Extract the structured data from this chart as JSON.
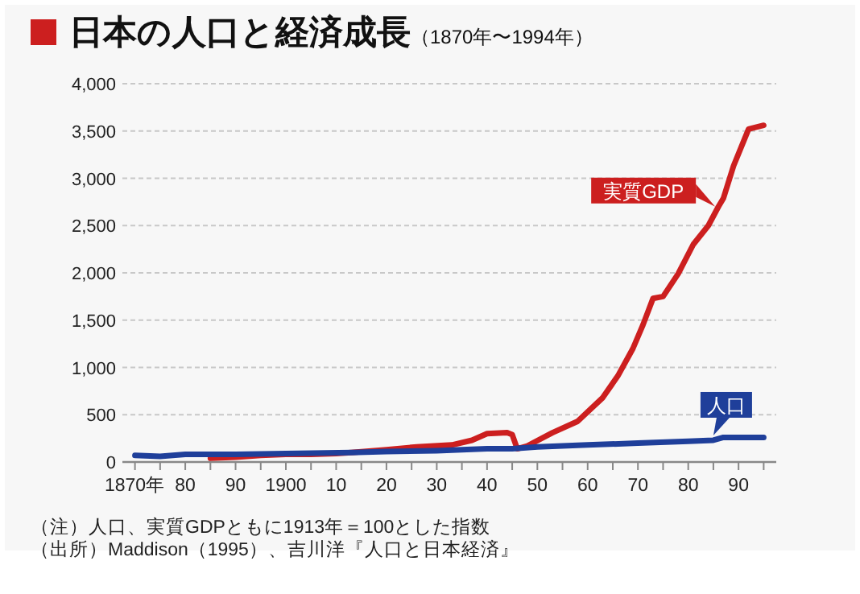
{
  "chart_data": {
    "type": "line",
    "title": "日本の人口と経済成長",
    "subtitle": "（1870年〜1994年）",
    "xlim": [
      1867.5,
      1997.5
    ],
    "xticks": [
      {
        "value": 1870,
        "label": "1870年"
      },
      {
        "value": 1875,
        "label": null
      },
      {
        "value": 1880,
        "label": "80"
      },
      {
        "value": 1885,
        "label": null
      },
      {
        "value": 1890,
        "label": "90"
      },
      {
        "value": 1895,
        "label": null
      },
      {
        "value": 1900,
        "label": "1900"
      },
      {
        "value": 1905,
        "label": null
      },
      {
        "value": 1910,
        "label": "10"
      },
      {
        "value": 1915,
        "label": null
      },
      {
        "value": 1920,
        "label": "20"
      },
      {
        "value": 1925,
        "label": null
      },
      {
        "value": 1930,
        "label": "30"
      },
      {
        "value": 1935,
        "label": null
      },
      {
        "value": 1940,
        "label": "40"
      },
      {
        "value": 1945,
        "label": null
      },
      {
        "value": 1950,
        "label": "50"
      },
      {
        "value": 1955,
        "label": null
      },
      {
        "value": 1960,
        "label": "60"
      },
      {
        "value": 1965,
        "label": null
      },
      {
        "value": 1970,
        "label": "70"
      },
      {
        "value": 1975,
        "label": null
      },
      {
        "value": 1980,
        "label": "80"
      },
      {
        "value": 1985,
        "label": null
      },
      {
        "value": 1990,
        "label": "90"
      },
      {
        "value": 1995,
        "label": null
      }
    ],
    "ylim": [
      0,
      4000
    ],
    "yticks": [
      {
        "value": 0,
        "label": "0"
      },
      {
        "value": 500,
        "label": "500"
      },
      {
        "value": 1000,
        "label": "1,000"
      },
      {
        "value": 1500,
        "label": "1,500"
      },
      {
        "value": 2000,
        "label": "2,000"
      },
      {
        "value": 2500,
        "label": "2,500"
      },
      {
        "value": 3000,
        "label": "3,000"
      },
      {
        "value": 3500,
        "label": "3,500"
      },
      {
        "value": 4000,
        "label": "4,000"
      }
    ],
    "grid": "y",
    "line_style": "solid",
    "marker": "none",
    "legend": "right",
    "series": [
      {
        "name": "実質GDP",
        "color": "#cc1f1f",
        "x": [
          1885,
          1890,
          1895,
          1900,
          1905,
          1910,
          1913,
          1920,
          1926,
          1933,
          1937,
          1940,
          1944,
          1945,
          1946,
          1948,
          1953,
          1958,
          1963,
          1966,
          1969,
          1971,
          1973,
          1975,
          1978,
          1981,
          1984,
          1986,
          1987,
          1989,
          1991,
          1992,
          1995
        ],
        "values": [
          40,
          50,
          70,
          80,
          80,
          90,
          100,
          130,
          160,
          180,
          230,
          300,
          310,
          290,
          140,
          170,
          310,
          430,
          680,
          910,
          1200,
          1450,
          1730,
          1750,
          1990,
          2300,
          2500,
          2700,
          2790,
          3130,
          3390,
          3520,
          3560
        ]
      },
      {
        "name": "人口",
        "color": "#1f3f9a",
        "x": [
          1870,
          1875,
          1880,
          1885,
          1890,
          1900,
          1913,
          1920,
          1930,
          1940,
          1945,
          1950,
          1960,
          1970,
          1980,
          1985,
          1987,
          1995
        ],
        "values": [
          70,
          60,
          80,
          80,
          80,
          90,
          100,
          110,
          120,
          140,
          140,
          160,
          180,
          200,
          220,
          230,
          260,
          260
        ]
      }
    ],
    "annotations": [
      "（注）人口、実質GDPともに1913年＝100とした指数",
      "（出所）Maddison（1995）、吉川洋『人口と日本経済』"
    ]
  }
}
